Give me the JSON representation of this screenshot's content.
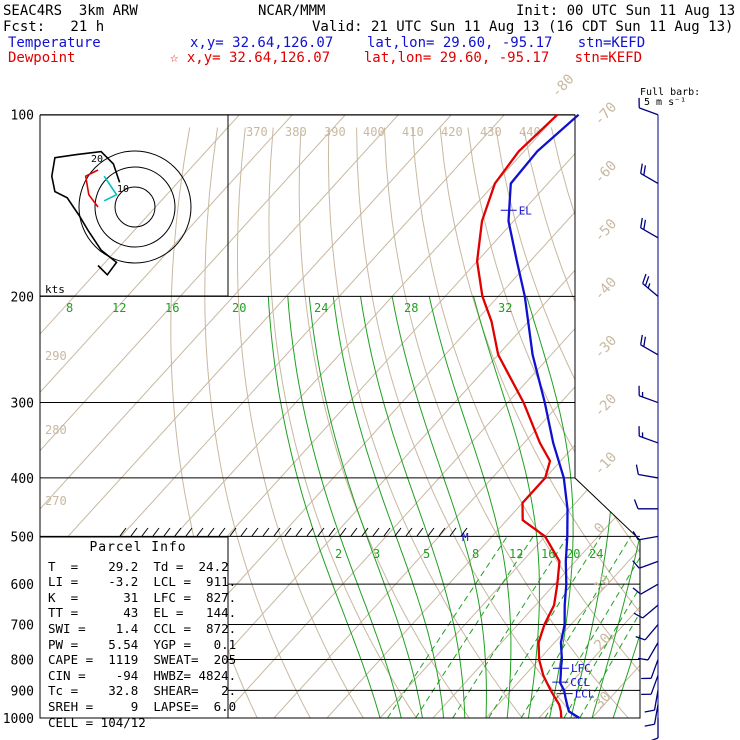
{
  "header": {
    "project": "SEAC4RS  3km ARW",
    "forecast": "Fcst:   21 h",
    "center": "NCAR/MMM",
    "init": "Init: 00 UTC Sun 11 Aug 13",
    "valid": "Valid: 21 UTC Sun 11 Aug 13 (16 CDT Sun 11 Aug 13)",
    "temperature_label": "Temperature",
    "temperature_loc": "x,y= 32.64,126.07    lat,lon= 29.60, -95.17   stn=KEFD",
    "dewpoint_label": "Dewpoint",
    "dewpoint_loc": "☆ x,y= 32.64,126.07    lat,lon= 29.60, -95.17   stn=KEFD"
  },
  "barb_title": "Full barb:",
  "barb_unit": "5 m s⁻¹",
  "hodograph": {
    "units": "kts",
    "labels": [
      "10",
      "20"
    ],
    "path": [
      [
        -5,
        8
      ],
      [
        -7,
        14
      ],
      [
        -11,
        18
      ],
      [
        -19,
        17
      ],
      [
        -26,
        16
      ],
      [
        -27,
        10
      ],
      [
        -26,
        5
      ],
      [
        -22,
        3
      ],
      [
        -20,
        0
      ],
      [
        -18,
        -3
      ],
      [
        -15,
        -8
      ],
      [
        -11,
        -14
      ],
      [
        -6,
        -18
      ],
      [
        -9,
        -22
      ],
      [
        -12,
        -19
      ]
    ],
    "path_red": [
      [
        -12,
        12
      ],
      [
        -16,
        10
      ],
      [
        -15,
        4
      ],
      [
        -12,
        0
      ]
    ],
    "path_cyan": [
      [
        -10,
        10
      ],
      [
        -6,
        4
      ],
      [
        -10,
        2
      ]
    ]
  },
  "chart_data": {
    "type": "line",
    "title": "",
    "pressure_levels": [
      100,
      200,
      300,
      400,
      500,
      600,
      700,
      800,
      900,
      1000
    ],
    "isotherm_labels": [
      "-80",
      "-70",
      "-60",
      "-50",
      "-40",
      "-30",
      "-20",
      "-10",
      "0",
      "10",
      "20",
      "30",
      "40"
    ],
    "theta_labels": [
      "370",
      "380",
      "390",
      "400",
      "410",
      "420",
      "430",
      "440"
    ],
    "theta_low_labels": [
      "290",
      "280",
      "270"
    ],
    "mixing_ratio_labels_upper": [
      "8",
      "12",
      "16",
      "20",
      "24",
      "28",
      "32"
    ],
    "mixing_ratio_labels_lower": [
      "2",
      "3",
      "5",
      "8",
      "12",
      "16",
      "20",
      "24"
    ],
    "series": [
      {
        "name": "Temperature",
        "color": "#1010d0",
        "points": [
          [
            1000,
            27.6
          ],
          [
            975,
            24.5
          ],
          [
            950,
            23.0
          ],
          [
            925,
            21.5
          ],
          [
            900,
            20.0
          ],
          [
            875,
            18.0
          ],
          [
            850,
            16.8
          ],
          [
            825,
            15.5
          ],
          [
            800,
            14.3
          ],
          [
            750,
            11.2
          ],
          [
            700,
            8.8
          ],
          [
            650,
            5.5
          ],
          [
            600,
            2.2
          ],
          [
            550,
            -1.8
          ],
          [
            500,
            -5.8
          ],
          [
            450,
            -10.5
          ],
          [
            400,
            -16.5
          ],
          [
            350,
            -24.5
          ],
          [
            300,
            -33.0
          ],
          [
            250,
            -43.5
          ],
          [
            200,
            -55.0
          ],
          [
            175,
            -62.5
          ],
          [
            150,
            -71.0
          ],
          [
            130,
            -77.0
          ],
          [
            115,
            -77.5
          ],
          [
            100,
            -76.0
          ]
        ]
      },
      {
        "name": "Dewpoint",
        "color": "#e00000",
        "points": [
          [
            1000,
            24.2
          ],
          [
            975,
            23.0
          ],
          [
            950,
            21.5
          ],
          [
            925,
            19.5
          ],
          [
            900,
            17.5
          ],
          [
            875,
            15.5
          ],
          [
            850,
            13.5
          ],
          [
            800,
            10.0
          ],
          [
            750,
            7.0
          ],
          [
            700,
            5.0
          ],
          [
            650,
            3.5
          ],
          [
            600,
            0.5
          ],
          [
            550,
            -3.0
          ],
          [
            500,
            -10.0
          ],
          [
            470,
            -17.0
          ],
          [
            440,
            -20.0
          ],
          [
            400,
            -20.0
          ],
          [
            375,
            -22.0
          ],
          [
            350,
            -27.0
          ],
          [
            300,
            -37.0
          ],
          [
            250,
            -50.0
          ],
          [
            220,
            -57.0
          ],
          [
            200,
            -63.0
          ],
          [
            175,
            -70.0
          ],
          [
            150,
            -76.0
          ],
          [
            130,
            -80.0
          ],
          [
            115,
            -81.0
          ],
          [
            100,
            -80.0
          ]
        ]
      }
    ],
    "annotations": [
      {
        "label": "EL",
        "pressure": 144
      },
      {
        "label": "LFC",
        "pressure": 827
      },
      {
        "label": "CCL",
        "pressure": 872
      },
      {
        "label": "LCL",
        "pressure": 911
      }
    ],
    "levels_marker": "M",
    "wind_barbs": [
      {
        "p": 100,
        "kt": 10,
        "dir": 290
      },
      {
        "p": 130,
        "kt": 20,
        "dir": 300
      },
      {
        "p": 160,
        "kt": 20,
        "dir": 300
      },
      {
        "p": 200,
        "kt": 25,
        "dir": 310
      },
      {
        "p": 250,
        "kt": 20,
        "dir": 300
      },
      {
        "p": 300,
        "kt": 15,
        "dir": 290
      },
      {
        "p": 350,
        "kt": 15,
        "dir": 290
      },
      {
        "p": 400,
        "kt": 10,
        "dir": 280
      },
      {
        "p": 450,
        "kt": 10,
        "dir": 270
      },
      {
        "p": 500,
        "kt": 10,
        "dir": 260
      },
      {
        "p": 550,
        "kt": 10,
        "dir": 250
      },
      {
        "p": 600,
        "kt": 10,
        "dir": 240
      },
      {
        "p": 650,
        "kt": 10,
        "dir": 230
      },
      {
        "p": 700,
        "kt": 10,
        "dir": 220
      },
      {
        "p": 750,
        "kt": 10,
        "dir": 210
      },
      {
        "p": 800,
        "kt": 10,
        "dir": 200
      },
      {
        "p": 850,
        "kt": 10,
        "dir": 200
      },
      {
        "p": 900,
        "kt": 10,
        "dir": 190
      },
      {
        "p": 950,
        "kt": 10,
        "dir": 190
      },
      {
        "p": 1000,
        "kt": 10,
        "dir": 180
      }
    ]
  },
  "parcel_info": {
    "title": "Parcel Info",
    "rows": [
      "T  =    29.2  Td =  24.2",
      "LI =    -3.2  LCL =  911.",
      "K  =      31  LFC =  827.",
      "TT =      43  EL =   144.",
      "SWI =    1.4  CCL =  872.",
      "PW =    5.54  YGP =   0.1",
      "CAPE =  1119  SWEAT=  205",
      "CIN =    -94  HWBZ= 4824.",
      "Tc =    32.8  SHEAR=   2.",
      "SREH =     9  LAPSE=  6.0",
      "CELL = 104/12"
    ]
  },
  "colors": {
    "isotherm": "#c8b8a0",
    "dry_adiabat": "#c8b8a0",
    "moist_adiabat": "#20a020",
    "mixing_ratio": "#20a020",
    "isobar": "#000000",
    "barb": "#000080"
  }
}
